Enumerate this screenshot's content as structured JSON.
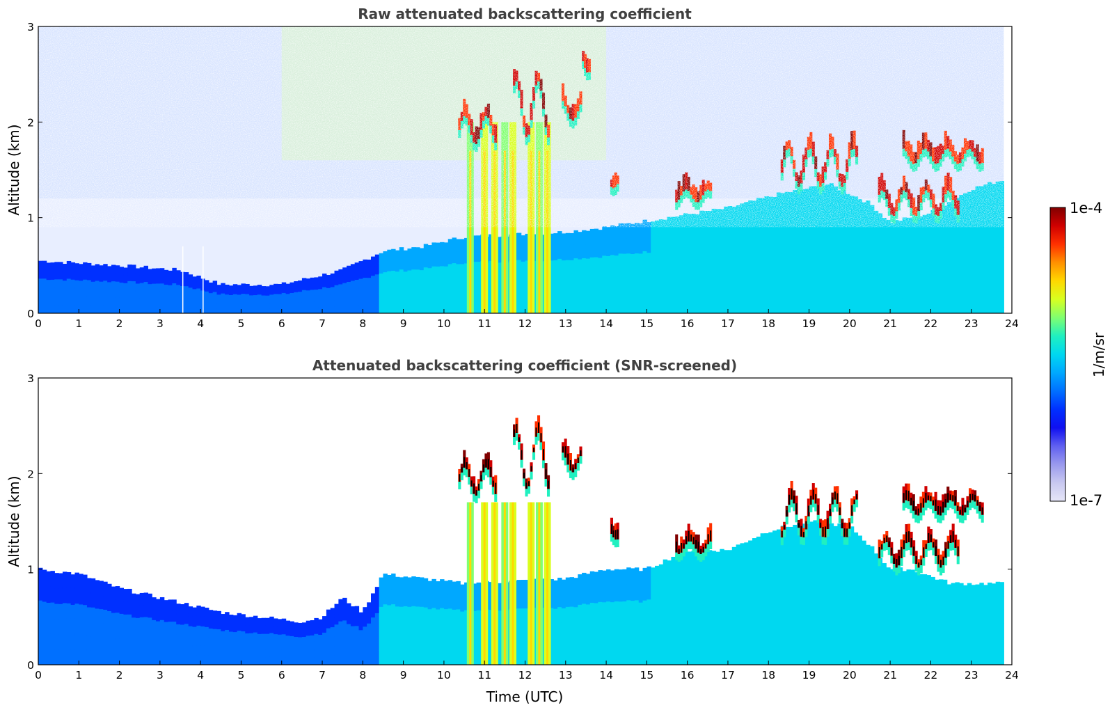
{
  "chart_data": [
    {
      "type": "heatmap",
      "title": "Raw attenuated backscattering coefficient",
      "xlabel": "",
      "ylabel": "Altitude (km)",
      "xlim": [
        0,
        24
      ],
      "ylim": [
        0,
        3
      ],
      "x_ticks": [
        "0",
        "1",
        "2",
        "3",
        "4",
        "5",
        "6",
        "7",
        "8",
        "9",
        "10",
        "11",
        "12",
        "13",
        "14",
        "15",
        "16",
        "17",
        "18",
        "19",
        "20",
        "21",
        "22",
        "23",
        "24"
      ],
      "y_ticks": [
        "0",
        "1",
        "2",
        "3"
      ],
      "data_extent_hours": 23.8,
      "boundary_layer_top_km": [
        [
          0,
          0.55
        ],
        [
          2,
          0.5
        ],
        [
          3.5,
          0.45
        ],
        [
          4.5,
          0.3
        ],
        [
          6,
          0.3
        ],
        [
          7.5,
          0.45
        ],
        [
          8.5,
          0.65
        ],
        [
          9.5,
          0.7
        ],
        [
          10.5,
          0.8
        ],
        [
          13,
          0.85
        ],
        [
          14,
          0.9
        ],
        [
          15.5,
          1.0
        ],
        [
          17,
          1.1
        ],
        [
          18.3,
          1.25
        ],
        [
          19.5,
          1.35
        ],
        [
          20.5,
          1.15
        ],
        [
          21,
          0.95
        ],
        [
          22,
          1.05
        ],
        [
          23,
          1.3
        ],
        [
          23.8,
          1.4
        ]
      ],
      "clouds": [
        {
          "t_start": 10.35,
          "t_end": 11.3,
          "alt_km": [
            1.75,
            2.3
          ]
        },
        {
          "t_start": 11.7,
          "t_end": 12.6,
          "alt_km": [
            1.8,
            2.9
          ]
        },
        {
          "t_start": 12.9,
          "t_end": 13.4,
          "alt_km": [
            2.0,
            2.4
          ]
        },
        {
          "t_start": 13.4,
          "t_end": 13.6,
          "alt_km": [
            2.5,
            2.9
          ]
        },
        {
          "t_start": 14.1,
          "t_end": 14.3,
          "alt_km": [
            1.3,
            1.5
          ]
        },
        {
          "t_start": 15.7,
          "t_end": 16.6,
          "alt_km": [
            1.15,
            1.4
          ]
        },
        {
          "t_start": 18.3,
          "t_end": 20.2,
          "alt_km": [
            1.3,
            2.05
          ]
        },
        {
          "t_start": 20.7,
          "t_end": 22.7,
          "alt_km": [
            1.0,
            1.5
          ]
        },
        {
          "t_start": 21.3,
          "t_end": 23.3,
          "alt_km": [
            1.55,
            1.85
          ]
        }
      ],
      "precipitation_columns_hours": [
        10.65,
        11.0,
        11.25,
        11.5,
        11.7,
        12.15,
        12.35,
        12.55
      ],
      "colormap": "jet",
      "missing_value_columns_hours": [
        3.55,
        4.05
      ]
    },
    {
      "type": "heatmap",
      "title": "Attenuated backscattering coefficient (SNR-screened)",
      "xlabel": "Time (UTC)",
      "ylabel": "Altitude (km)",
      "xlim": [
        0,
        24
      ],
      "ylim": [
        0,
        3
      ],
      "x_ticks": [
        "0",
        "1",
        "2",
        "3",
        "4",
        "5",
        "6",
        "7",
        "8",
        "9",
        "10",
        "11",
        "12",
        "13",
        "14",
        "15",
        "16",
        "17",
        "18",
        "19",
        "20",
        "21",
        "22",
        "23",
        "24"
      ],
      "y_ticks": [
        "0",
        "1",
        "2",
        "3"
      ],
      "data_extent_hours": 23.8,
      "screened_layer_top_km": [
        [
          0,
          1.0
        ],
        [
          1,
          0.95
        ],
        [
          2,
          0.8
        ],
        [
          3,
          0.7
        ],
        [
          3.5,
          0.65
        ],
        [
          4,
          0.6
        ],
        [
          4.5,
          0.55
        ],
        [
          5.5,
          0.5
        ],
        [
          6.5,
          0.45
        ],
        [
          7,
          0.5
        ],
        [
          7.5,
          0.7
        ],
        [
          8,
          0.55
        ],
        [
          8.5,
          0.95
        ],
        [
          9.5,
          0.9
        ],
        [
          10.5,
          0.85
        ],
        [
          13,
          0.9
        ],
        [
          14,
          1.0
        ],
        [
          15,
          1.0
        ],
        [
          16,
          1.2
        ],
        [
          17,
          1.2
        ],
        [
          18,
          1.4
        ],
        [
          19,
          1.5
        ],
        [
          20,
          1.45
        ],
        [
          20.5,
          1.25
        ],
        [
          21,
          1.0
        ],
        [
          21.5,
          1.0
        ],
        [
          22.5,
          0.85
        ],
        [
          23,
          0.85
        ],
        [
          23.8,
          0.85
        ]
      ],
      "clouds": [
        {
          "t_start": 10.35,
          "t_end": 11.3,
          "alt_km": [
            1.75,
            2.3
          ]
        },
        {
          "t_start": 11.7,
          "t_end": 12.6,
          "alt_km": [
            1.8,
            2.9
          ]
        },
        {
          "t_start": 12.9,
          "t_end": 13.4,
          "alt_km": [
            2.0,
            2.4
          ]
        },
        {
          "t_start": 14.1,
          "t_end": 14.3,
          "alt_km": [
            1.3,
            1.5
          ]
        },
        {
          "t_start": 15.7,
          "t_end": 16.6,
          "alt_km": [
            1.15,
            1.4
          ]
        },
        {
          "t_start": 18.3,
          "t_end": 20.2,
          "alt_km": [
            1.3,
            2.05
          ]
        },
        {
          "t_start": 20.7,
          "t_end": 22.7,
          "alt_km": [
            1.0,
            1.5
          ]
        },
        {
          "t_start": 21.3,
          "t_end": 23.3,
          "alt_km": [
            1.55,
            1.85
          ]
        }
      ],
      "precipitation_columns_hours": [
        10.65,
        11.0,
        11.25,
        11.5,
        11.7,
        12.15,
        12.35,
        12.55
      ],
      "colormap": "jet",
      "saturated_color": "#000000"
    }
  ],
  "colorbar": {
    "label": "1/m/sr",
    "max_label": "1e-4",
    "min_label": "1e-7",
    "colors": [
      "#e6e6f8",
      "#c8c8f0",
      "#9a9aee",
      "#6060f0",
      "#1010f0",
      "#0030ff",
      "#0070ff",
      "#00a8ff",
      "#00d8f0",
      "#20f0c0",
      "#80ff70",
      "#d8ff20",
      "#ffd800",
      "#ff9000",
      "#ff3000",
      "#d00000",
      "#800000"
    ]
  },
  "colors": {
    "background": "#ffffff",
    "title": "#404040",
    "axis": "#000000"
  }
}
